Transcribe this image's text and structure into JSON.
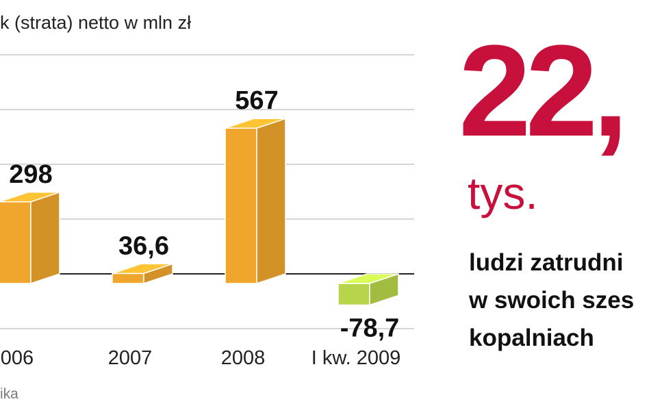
{
  "chart_data": {
    "type": "bar",
    "title": "k (strata) netto w mln zł",
    "categories": [
      "006",
      "2007",
      "2008",
      "I kw. 2009"
    ],
    "values": [
      298,
      36.6,
      567,
      -78.7
    ],
    "value_labels": [
      "298",
      "36,6",
      "567",
      "-78,7"
    ],
    "colors": [
      "#f0a62c",
      "#f0a62c",
      "#f0a62c",
      "#b8d44a"
    ],
    "ylim": [
      -200,
      800
    ],
    "yticks": [
      -200,
      0,
      200,
      400,
      600,
      800
    ],
    "grid": true
  },
  "headline": {
    "number": "22,",
    "unit": "tys.",
    "lines": [
      "ludzi zatrudni",
      "w swoich szes",
      "kopalniach"
    ]
  },
  "source": "ika"
}
